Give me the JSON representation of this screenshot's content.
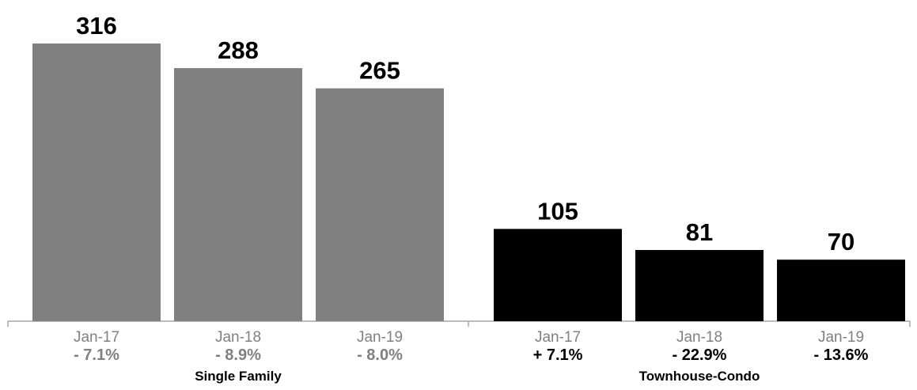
{
  "chart_data": {
    "type": "bar",
    "title": "",
    "xlabel": "",
    "ylabel": "",
    "ylim": [
      0,
      316
    ],
    "grid": false,
    "legend": "none",
    "groups": [
      {
        "name": "Single Family",
        "color": "#808080",
        "change_color": "#808080",
        "categories": [
          "Jan-17",
          "Jan-18",
          "Jan-19"
        ],
        "values": [
          316,
          288,
          265
        ],
        "value_labels": [
          "316",
          "288",
          "265"
        ],
        "changes": [
          "- 7.1%",
          "- 8.9%",
          "- 8.0%"
        ]
      },
      {
        "name": "Townhouse-Condo",
        "color": "#000000",
        "change_color": "#000000",
        "categories": [
          "Jan-17",
          "Jan-18",
          "Jan-19"
        ],
        "values": [
          105,
          81,
          70
        ],
        "value_labels": [
          "105",
          "81",
          "70"
        ],
        "changes": [
          "+ 7.1%",
          "- 22.9%",
          "- 13.6%"
        ]
      }
    ]
  }
}
